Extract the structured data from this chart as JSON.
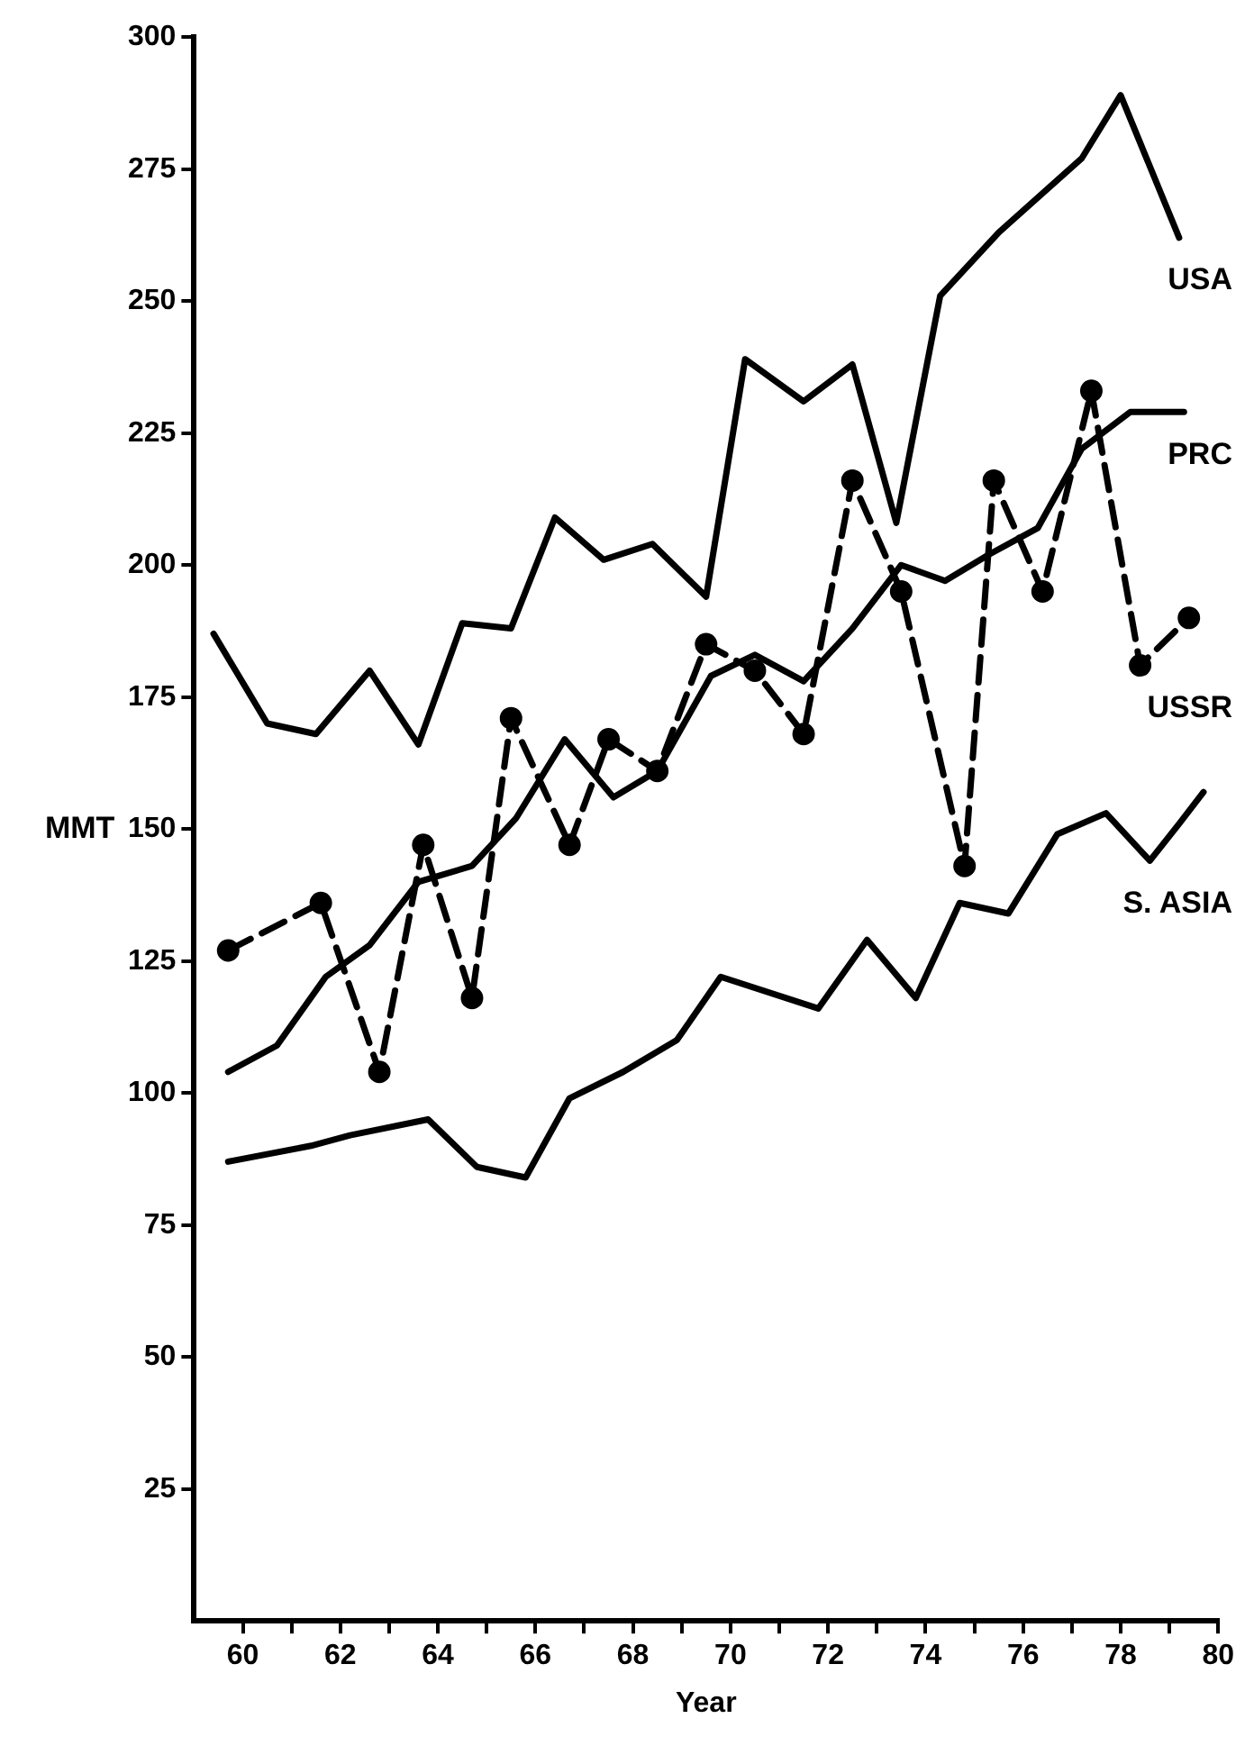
{
  "chart_data": {
    "type": "line",
    "xlabel": "Year",
    "ylabel": "MMT",
    "xlim": [
      59,
      80
    ],
    "ylim": [
      0,
      300
    ],
    "xticks": [
      60,
      {
        "value": 61,
        "label": null
      },
      62,
      {
        "value": 63,
        "label": null
      },
      64,
      {
        "value": 65,
        "label": null
      },
      66,
      {
        "value": 67,
        "label": null
      },
      68,
      {
        "value": 69,
        "label": null
      },
      70,
      {
        "value": 71,
        "label": null
      },
      72,
      {
        "value": 73,
        "label": null
      },
      74,
      {
        "value": 75,
        "label": null
      },
      76,
      {
        "value": 77,
        "label": null
      },
      78,
      {
        "value": 79,
        "label": null
      },
      80
    ],
    "yticks": [
      25,
      50,
      75,
      100,
      125,
      150,
      175,
      200,
      225,
      250,
      275,
      300
    ],
    "grid": false,
    "series": [
      {
        "name": "USA",
        "color": "#000000",
        "line_style": "solid",
        "marker": "none",
        "x": [
          59.4,
          60.5,
          61.5,
          62.6,
          63.6,
          64.5,
          65.5,
          66.4,
          67.4,
          68.4,
          69.5,
          70.3,
          71.5,
          72.5,
          73.4,
          74.3,
          75.5,
          77.2,
          78.0,
          79.2
        ],
        "values": [
          187,
          170,
          168,
          180,
          166,
          189,
          188,
          209,
          201,
          204,
          194,
          239,
          231,
          238,
          208,
          251,
          263,
          277,
          289,
          262
        ]
      },
      {
        "name": "PRC",
        "color": "#000000",
        "line_style": "solid",
        "marker": "none",
        "x": [
          59.7,
          60.7,
          61.7,
          62.6,
          63.6,
          64.7,
          65.6,
          66.6,
          67.6,
          68.5,
          69.6,
          70.5,
          71.5,
          72.5,
          73.5,
          74.4,
          75.3,
          76.3,
          77.2,
          78.2,
          79.3
        ],
        "values": [
          104,
          109,
          122,
          128,
          140,
          143,
          152,
          167,
          156,
          161,
          179,
          183,
          178,
          188,
          200,
          197,
          202,
          207,
          222,
          229,
          229
        ]
      },
      {
        "name": "USSR",
        "color": "#000000",
        "line_style": "dashed",
        "marker": "circle",
        "x": [
          59.7,
          61.6,
          62.8,
          63.7,
          64.7,
          65.5,
          66.7,
          67.5,
          68.5,
          69.5,
          70.5,
          71.5,
          72.5,
          73.5,
          74.8,
          75.4,
          76.4,
          77.4,
          78.4,
          79.4
        ],
        "values": [
          127,
          136,
          104,
          147,
          118,
          171,
          147,
          167,
          161,
          185,
          180,
          168,
          216,
          195,
          143,
          216,
          195,
          233,
          181,
          190
        ]
      },
      {
        "name": "S. ASIA",
        "color": "#000000",
        "line_style": "solid",
        "marker": "none",
        "x": [
          59.7,
          61.4,
          62.2,
          63.8,
          64.8,
          65.8,
          66.7,
          67.8,
          68.9,
          69.8,
          71.8,
          72.8,
          73.8,
          74.7,
          75.7,
          76.7,
          77.7,
          78.6,
          79.2,
          79.7
        ],
        "values": [
          87,
          90,
          92,
          95,
          86,
          84,
          99,
          104,
          110,
          122,
          116,
          129,
          118,
          136,
          134,
          149,
          153,
          144,
          151,
          157
        ]
      }
    ]
  }
}
